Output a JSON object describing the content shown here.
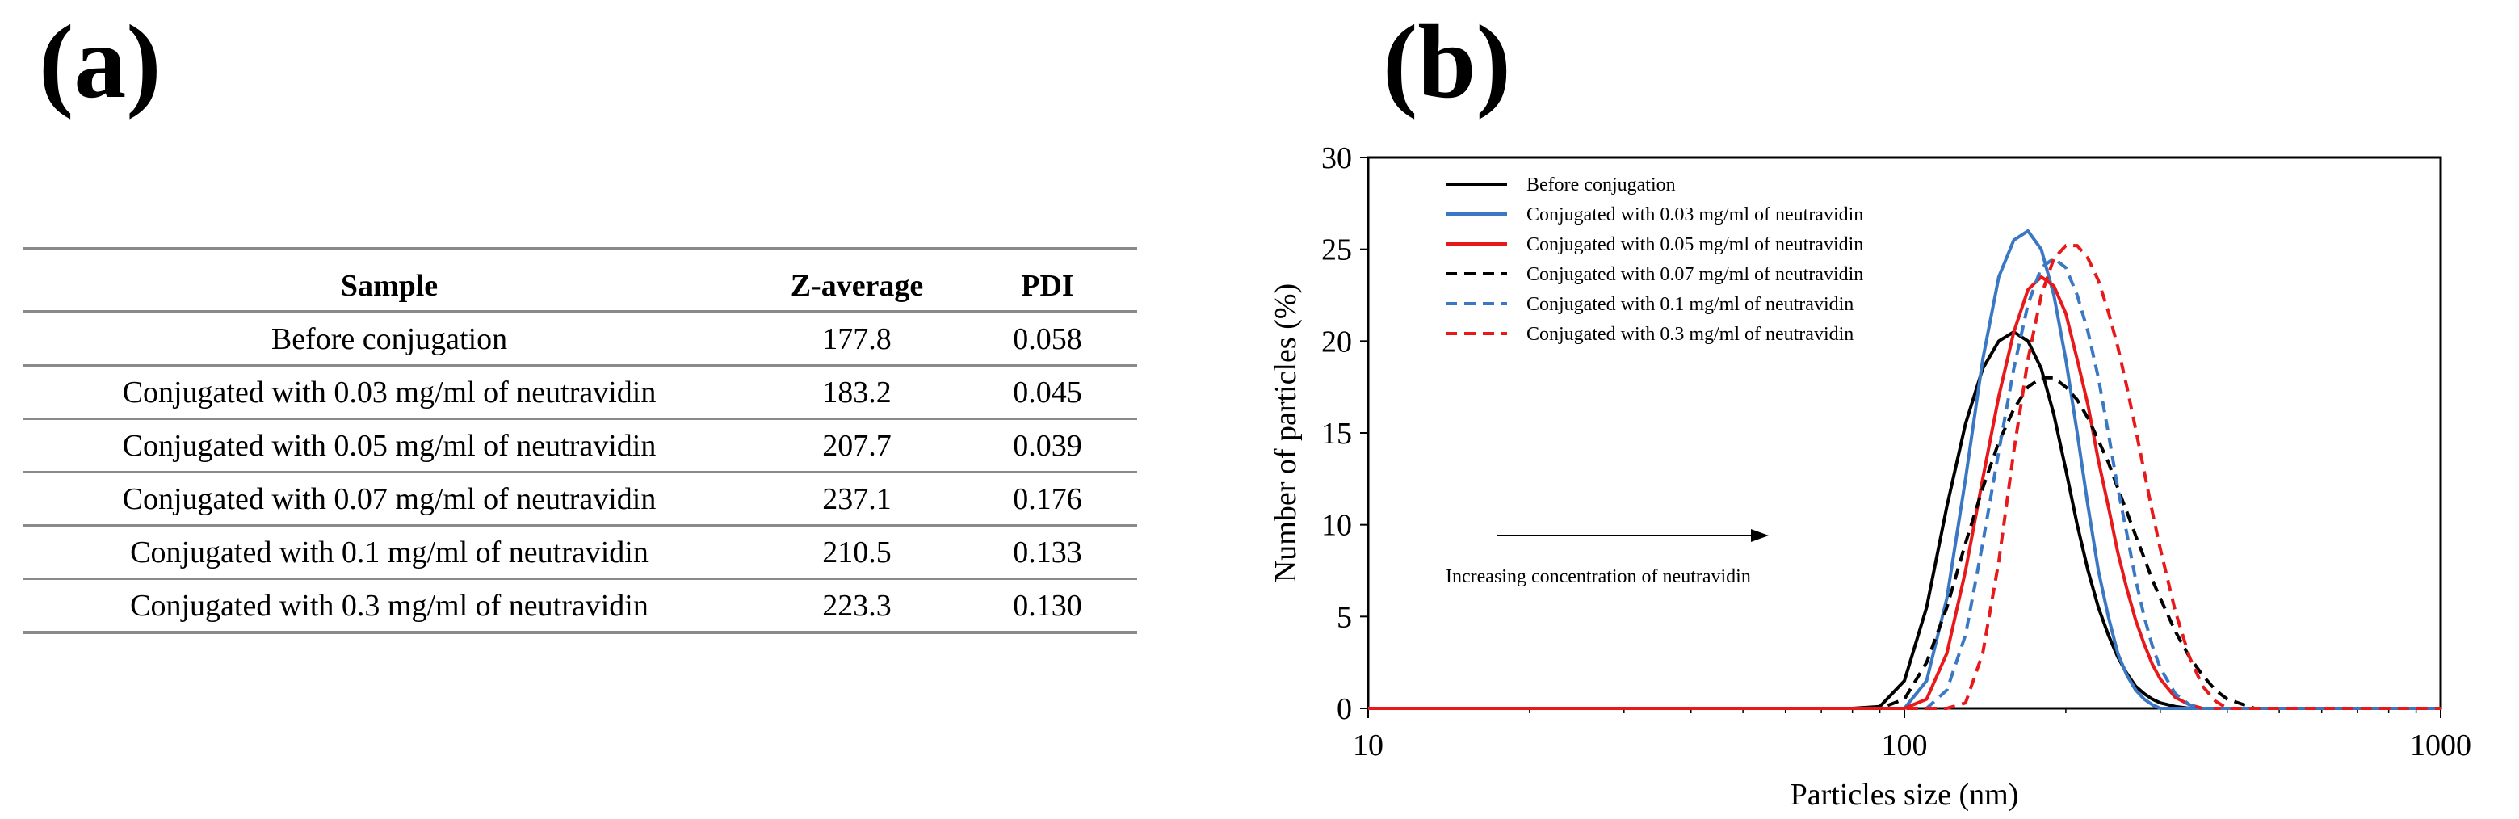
{
  "panels": {
    "a_label": "(a)",
    "b_label": "(b)"
  },
  "table": {
    "headers": [
      "Sample",
      "Z-average",
      "PDI"
    ],
    "rows": [
      [
        "Before conjugation",
        "177.8",
        "0.058"
      ],
      [
        "Conjugated with 0.03 mg/ml of neutravidin",
        "183.2",
        "0.045"
      ],
      [
        "Conjugated with 0.05 mg/ml of neutravidin",
        "207.7",
        "0.039"
      ],
      [
        "Conjugated with 0.07 mg/ml of neutravidin",
        "237.1",
        "0.176"
      ],
      [
        "Conjugated with 0.1 mg/ml of neutravidin",
        "210.5",
        "0.133"
      ],
      [
        "Conjugated with 0.3 mg/ml of neutravidin",
        "223.3",
        "0.130"
      ]
    ]
  },
  "chart_data": {
    "type": "line",
    "xlabel": "Particles size (nm)",
    "ylabel": "Number of particles (%)",
    "xscale": "log",
    "xlim": [
      10,
      1000
    ],
    "ylim": [
      0,
      30
    ],
    "xticks": [
      10,
      100,
      1000
    ],
    "xtick_labels": [
      "10",
      "100",
      "1000"
    ],
    "yticks": [
      0,
      5,
      10,
      15,
      20,
      25,
      30
    ],
    "ytick_labels": [
      "0",
      "5",
      "10",
      "15",
      "20",
      "25",
      "30"
    ],
    "legend_position": "top-left",
    "annotation": "Increasing concentration of neutravidin",
    "x": [
      10,
      80,
      90,
      100,
      110,
      120,
      130,
      140,
      150,
      160,
      170,
      180,
      190,
      200,
      210,
      220,
      230,
      240,
      250,
      260,
      270,
      280,
      290,
      300,
      320,
      340,
      360,
      380,
      400,
      450,
      500,
      1000
    ],
    "series": [
      {
        "name": "Before conjugation",
        "color": "#000000",
        "dash": "solid",
        "values": [
          0,
          0,
          0.1,
          1.5,
          5.5,
          11.0,
          15.5,
          18.5,
          20.0,
          20.5,
          20.0,
          18.5,
          16.0,
          13.0,
          10.0,
          7.5,
          5.5,
          4.0,
          2.8,
          1.9,
          1.2,
          0.8,
          0.5,
          0.3,
          0.1,
          0,
          0,
          0,
          0,
          0,
          0,
          0
        ]
      },
      {
        "name": "Conjugated with 0.03 mg/ml of neutravidin",
        "color": "#3a78c3",
        "dash": "solid",
        "values": [
          0,
          0,
          0,
          0,
          1.5,
          6.0,
          12.5,
          19.0,
          23.5,
          25.5,
          26.0,
          25.0,
          22.5,
          19.0,
          15.0,
          11.0,
          7.5,
          5.0,
          3.0,
          1.8,
          1.0,
          0.5,
          0.2,
          0,
          0,
          0,
          0,
          0,
          0,
          0,
          0,
          0
        ]
      },
      {
        "name": "Conjugated with 0.05 mg/ml of neutravidin",
        "color": "#e8191b",
        "dash": "solid",
        "values": [
          0,
          0,
          0,
          0,
          0.5,
          3.0,
          7.5,
          12.5,
          17.0,
          20.5,
          22.8,
          23.5,
          23.0,
          21.5,
          19.0,
          16.5,
          13.5,
          11.0,
          8.5,
          6.5,
          4.8,
          3.5,
          2.4,
          1.6,
          0.6,
          0.2,
          0,
          0,
          0,
          0,
          0,
          0
        ]
      },
      {
        "name": "Conjugated with 0.07 mg/ml of neutravidin",
        "color": "#000000",
        "dash": "dashed",
        "values": [
          0,
          0,
          0,
          0.5,
          2.5,
          5.5,
          9.0,
          12.0,
          14.5,
          16.3,
          17.5,
          18.0,
          18.0,
          17.5,
          16.8,
          15.8,
          14.6,
          13.4,
          12.0,
          10.7,
          9.4,
          8.2,
          7.0,
          6.0,
          4.2,
          2.8,
          1.8,
          1.0,
          0.5,
          0,
          0,
          0
        ]
      },
      {
        "name": "Conjugated with 0.1 mg/ml of neutravidin",
        "color": "#3a78c3",
        "dash": "dashed",
        "values": [
          0,
          0,
          0,
          0,
          0,
          1.0,
          4.0,
          9.0,
          14.0,
          18.5,
          22.0,
          24.0,
          24.5,
          24.0,
          22.5,
          20.5,
          18.0,
          15.0,
          12.0,
          9.5,
          7.0,
          5.0,
          3.4,
          2.2,
          0.8,
          0.2,
          0,
          0,
          0,
          0,
          0,
          0
        ]
      },
      {
        "name": "Conjugated with 0.3 mg/ml of neutravidin",
        "color": "#e8191b",
        "dash": "dashed",
        "values": [
          0,
          0,
          0,
          0,
          0,
          0,
          0.3,
          3.0,
          8.0,
          14.0,
          19.0,
          22.5,
          24.5,
          25.2,
          25.2,
          24.5,
          23.3,
          21.6,
          19.7,
          17.5,
          15.2,
          12.9,
          10.7,
          8.7,
          5.3,
          2.8,
          1.2,
          0.4,
          0,
          0,
          0,
          0
        ]
      }
    ]
  }
}
